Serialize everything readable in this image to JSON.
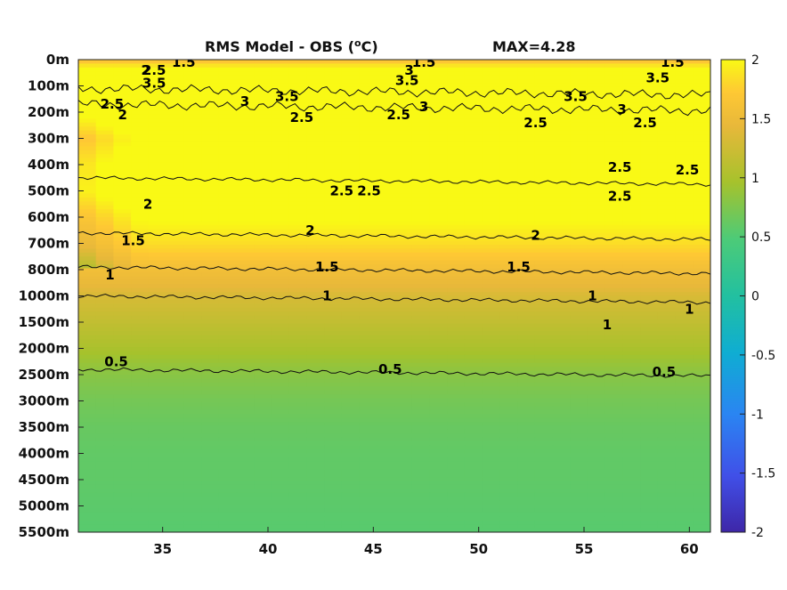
{
  "chart_data": {
    "type": "heatmap",
    "title": "RMS Model - OBS (",
    "title_unit_sup": "o",
    "title_unit_end": "C)",
    "max_label": "MAX=4.28",
    "x_ticks": [
      35,
      40,
      45,
      50,
      55,
      60
    ],
    "x_range": [
      31,
      61
    ],
    "y_tick_labels": [
      "0m",
      "100m",
      "200m",
      "300m",
      "400m",
      "500m",
      "600m",
      "700m",
      "800m",
      "1000m",
      "1500m",
      "2000m",
      "2500m",
      "3000m",
      "3500m",
      "4000m",
      "4500m",
      "5000m",
      "5500m"
    ],
    "colorbar": {
      "range": [
        -2,
        2
      ],
      "ticks": [
        2,
        1.5,
        1,
        0.5,
        0,
        -0.5,
        -1,
        -1.5,
        -2
      ],
      "tick_labels": [
        "2",
        "1.5",
        "1",
        "0.5",
        "0",
        "-0.5",
        "-1",
        "-1.5",
        "-2"
      ],
      "colormap": [
        "#3e26a8",
        "#4050e8",
        "#2a85f2",
        "#0fadd2",
        "#22c0a0",
        "#4ccb78",
        "#a6c22c",
        "#e8b83a",
        "#fec834",
        "#f9f915"
      ]
    },
    "depth_profile": {
      "depth_index": [
        0,
        0.5,
        1,
        1.5,
        2,
        3,
        4,
        5,
        6,
        7,
        8,
        9,
        10,
        11,
        12,
        13,
        14,
        15,
        16,
        17,
        18
      ],
      "rms": [
        1.4,
        2.3,
        2.9,
        3.3,
        2.7,
        2.1,
        2.4,
        2.5,
        2.05,
        1.75,
        1.3,
        1.0,
        0.85,
        0.7,
        0.52,
        0.42,
        0.36,
        0.33,
        0.32,
        0.3,
        0.28
      ]
    },
    "contours": [
      {
        "level": "0.5",
        "depth_index": 11.8
      },
      {
        "level": "1",
        "depth_index": 9.0
      },
      {
        "level": "1.5",
        "depth_index": 7.9
      },
      {
        "level": "2",
        "depth_index": 6.6
      },
      {
        "level": "2.5",
        "depth_index": 4.5
      },
      {
        "level": "3",
        "depth_index": 1.7
      },
      {
        "level": "3.5",
        "depth_index": 1.1
      }
    ],
    "contour_labels": [
      {
        "text": "0.5",
        "x": 32.8,
        "d": 11.5
      },
      {
        "text": "0.5",
        "x": 45.8,
        "d": 11.8
      },
      {
        "text": "0.5",
        "x": 58.8,
        "d": 11.9
      },
      {
        "text": "1",
        "x": 32.5,
        "d": 8.2
      },
      {
        "text": "1",
        "x": 42.8,
        "d": 9.0
      },
      {
        "text": "1",
        "x": 55.4,
        "d": 9.0
      },
      {
        "text": "1",
        "x": 60.0,
        "d": 9.5
      },
      {
        "text": "1",
        "x": 56.1,
        "d": 10.1
      },
      {
        "text": "1.5",
        "x": 33.6,
        "d": 6.9
      },
      {
        "text": "1.5",
        "x": 42.8,
        "d": 7.9
      },
      {
        "text": "1.5",
        "x": 51.9,
        "d": 7.9
      },
      {
        "text": "1.5",
        "x": 36.0,
        "d": 0.1
      },
      {
        "text": "1.5",
        "x": 47.4,
        "d": 0.1
      },
      {
        "text": "1.5",
        "x": 59.2,
        "d": 0.1
      },
      {
        "text": "2",
        "x": 34.3,
        "d": 5.5
      },
      {
        "text": "2",
        "x": 34.2,
        "d": 0.4
      },
      {
        "text": "2",
        "x": 33.1,
        "d": 2.1
      },
      {
        "text": "2",
        "x": 42.0,
        "d": 6.5
      },
      {
        "text": "2",
        "x": 52.7,
        "d": 6.7
      },
      {
        "text": "2.5",
        "x": 34.6,
        "d": 0.4
      },
      {
        "text": "2.5",
        "x": 32.6,
        "d": 1.7
      },
      {
        "text": "2.5",
        "x": 41.6,
        "d": 2.2
      },
      {
        "text": "2.5",
        "x": 46.2,
        "d": 2.1
      },
      {
        "text": "2.5",
        "x": 52.7,
        "d": 2.4
      },
      {
        "text": "2.5",
        "x": 57.9,
        "d": 2.4
      },
      {
        "text": "2.5",
        "x": 43.5,
        "d": 5.0
      },
      {
        "text": "2.5",
        "x": 44.8,
        "d": 5.0
      },
      {
        "text": "2.5",
        "x": 56.7,
        "d": 5.2
      },
      {
        "text": "2.5",
        "x": 56.7,
        "d": 4.1
      },
      {
        "text": "2.5",
        "x": 59.9,
        "d": 4.2
      },
      {
        "text": "3",
        "x": 46.7,
        "d": 0.4
      },
      {
        "text": "3",
        "x": 38.9,
        "d": 1.6
      },
      {
        "text": "3",
        "x": 47.4,
        "d": 1.8
      },
      {
        "text": "3",
        "x": 56.8,
        "d": 1.9
      },
      {
        "text": "3.5",
        "x": 34.6,
        "d": 0.9
      },
      {
        "text": "3.5",
        "x": 46.6,
        "d": 0.8
      },
      {
        "text": "3.5",
        "x": 58.5,
        "d": 0.7
      },
      {
        "text": "3.5",
        "x": 40.9,
        "d": 1.4
      },
      {
        "text": "3.5",
        "x": 54.6,
        "d": 1.4
      }
    ]
  }
}
